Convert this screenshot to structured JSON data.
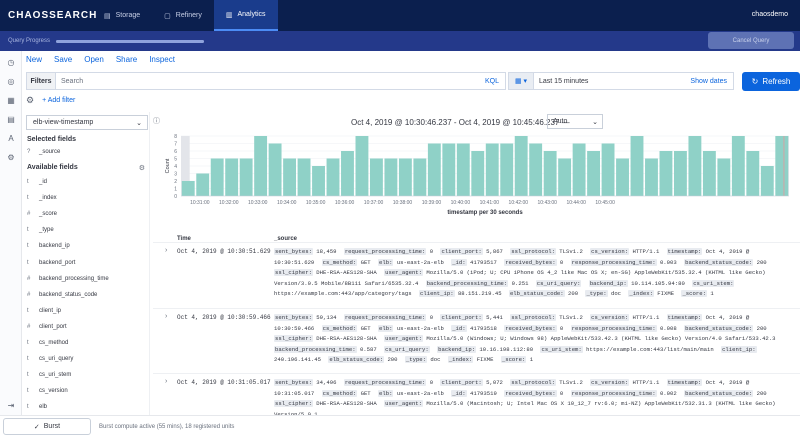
{
  "topbar": {
    "logo": "CHAOSSEARCH",
    "tabs": [
      {
        "label": "Storage",
        "icon": "storage-icon"
      },
      {
        "label": "Refinery",
        "icon": "refinery-icon"
      },
      {
        "label": "Analytics",
        "icon": "analytics-icon",
        "active": true
      }
    ],
    "user": "chaosdemo"
  },
  "progress": {
    "label": "Query Progress",
    "fraction": 1.0,
    "cancel_label": "Cancel Query"
  },
  "menu": [
    "New",
    "Save",
    "Open",
    "Share",
    "Inspect"
  ],
  "filterbar": {
    "filters_label": "Filters",
    "search_placeholder": "Search",
    "kql_label": "KQL",
    "time_range": "Last 15 minutes",
    "show_dates": "Show dates",
    "refresh_label": "Refresh"
  },
  "add_filter_label": "+ Add filter",
  "sidebar": {
    "index_pattern": "elb-view-timestamp",
    "selected_title": "Selected fields",
    "selected_fields": [
      {
        "type": "?",
        "name": "_source"
      }
    ],
    "available_title": "Available fields",
    "available_fields": [
      {
        "type": "t",
        "name": "_id"
      },
      {
        "type": "t",
        "name": "_index"
      },
      {
        "type": "#",
        "name": "_score"
      },
      {
        "type": "t",
        "name": "_type"
      },
      {
        "type": "t",
        "name": "backend_ip"
      },
      {
        "type": "t",
        "name": "backend_port"
      },
      {
        "type": "#",
        "name": "backend_processing_time"
      },
      {
        "type": "#",
        "name": "backend_status_code"
      },
      {
        "type": "t",
        "name": "client_ip"
      },
      {
        "type": "#",
        "name": "client_port"
      },
      {
        "type": "t",
        "name": "cs_method"
      },
      {
        "type": "t",
        "name": "cs_uri_query"
      },
      {
        "type": "t",
        "name": "cs_uri_stem"
      },
      {
        "type": "t",
        "name": "cs_version"
      },
      {
        "type": "t",
        "name": "elb"
      }
    ]
  },
  "main": {
    "time_range_text": "Oct 4, 2019 @ 10:30:46.237 - Oct 4, 2019 @ 10:45:46.237 —",
    "interval": "Auto",
    "col_time": "Time",
    "col_source": "_source"
  },
  "chart_data": {
    "type": "bar",
    "ylabel": "Count",
    "xlabel": "timestamp per 30 seconds",
    "ylim": [
      0,
      8
    ],
    "yticks": [
      "0",
      "1",
      "2",
      "3",
      "4",
      "5",
      "6",
      "7",
      "8"
    ],
    "xtick_labels": [
      "10:31:00",
      "10:32:00",
      "10:33:00",
      "10:34:00",
      "10:35:00",
      "10:36:00",
      "10:37:00",
      "10:38:00",
      "10:39:00",
      "10:40:00",
      "10:41:00",
      "10:42:00",
      "10:43:00",
      "10:44:00",
      "10:45:00"
    ],
    "values": [
      2,
      3,
      5,
      5,
      5,
      8,
      7,
      5,
      5,
      4,
      5,
      6,
      8,
      5,
      5,
      5,
      5,
      7,
      7,
      7,
      6,
      7,
      7,
      8,
      7,
      6,
      5,
      7,
      6,
      7,
      5,
      8,
      5,
      6,
      6,
      8,
      6,
      5,
      8,
      6,
      4,
      8
    ],
    "bar_color": "#8fd1c7",
    "partial_color": "#e3e5ea",
    "edge_color": "#d4a3a3",
    "grid": true
  },
  "docs": [
    {
      "time": "Oct 4, 2019 @ 10:30:51.629",
      "fields": [
        [
          "sent_bytes",
          "18,459"
        ],
        [
          "request_processing_time",
          "0"
        ],
        [
          "client_port",
          "5,867"
        ],
        [
          "ssl_protocol",
          "TLSv1.2"
        ],
        [
          "cs_version",
          "HTTP/1.1"
        ],
        [
          "timestamp",
          "Oct 4, 2019 @ 10:30:51.629"
        ],
        [
          "cs_method",
          "GET"
        ],
        [
          "elb",
          "us-east-2a-elb"
        ],
        [
          "_id",
          "41793517"
        ],
        [
          "received_bytes",
          "0"
        ],
        [
          "response_processing_time",
          "0.003"
        ],
        [
          "backend_status_code",
          "200"
        ],
        [
          "ssl_cipher",
          "DHE-RSA-AES128-SHA"
        ],
        [
          "user_agent",
          "Mozilla/5.0 (iPod; U; CPU iPhone OS 4_2 like Mac OS X; en-SG) AppleWebKit/535.32.4 (KHTML like Gecko) Version/3.0.5 Mobile/8B111 Safari/6535.32.4"
        ],
        [
          "backend_processing_time",
          "0.251"
        ],
        [
          "cs_uri_query",
          ""
        ],
        [
          "backend_ip",
          "10.114.105.94:80"
        ],
        [
          "cs_uri_stem",
          "https://example.com:443/app/category/tags"
        ],
        [
          "client_ip",
          "88.151.219.45"
        ],
        [
          "elb_status_code",
          "200"
        ],
        [
          "_type",
          "doc"
        ],
        [
          "_index",
          "FIXME"
        ],
        [
          "_score",
          "1"
        ]
      ]
    },
    {
      "time": "Oct 4, 2019 @ 10:30:59.466",
      "fields": [
        [
          "sent_bytes",
          "59,134"
        ],
        [
          "request_processing_time",
          "0"
        ],
        [
          "client_port",
          "5,441"
        ],
        [
          "ssl_protocol",
          "TLSv1.2"
        ],
        [
          "cs_version",
          "HTTP/1.1"
        ],
        [
          "timestamp",
          "Oct 4, 2019 @ 10:30:59.466"
        ],
        [
          "cs_method",
          "GET"
        ],
        [
          "elb",
          "us-east-2a-elb"
        ],
        [
          "_id",
          "41793518"
        ],
        [
          "received_bytes",
          "0"
        ],
        [
          "response_processing_time",
          "0.008"
        ],
        [
          "backend_status_code",
          "200"
        ],
        [
          "ssl_cipher",
          "DHE-RSA-AES128-SHA"
        ],
        [
          "user_agent",
          "Mozilla/5.0 (Windows; U; Windows 98) AppleWebKit/533.42.3 (KHTML like Gecko) Version/4.0 Safari/533.42.3"
        ],
        [
          "backend_processing_time",
          "0.587"
        ],
        [
          "cs_uri_query",
          ""
        ],
        [
          "backend_ip",
          "10.16.198.112:80"
        ],
        [
          "cs_uri_stem",
          "https://example.com:443/list/main/main"
        ],
        [
          "client_ip",
          "240.196.141.45"
        ],
        [
          "elb_status_code",
          "200"
        ],
        [
          "_type",
          "doc"
        ],
        [
          "_index",
          "FIXME"
        ],
        [
          "_score",
          "1"
        ]
      ]
    },
    {
      "time": "Oct 4, 2019 @ 10:31:05.017",
      "fields": [
        [
          "sent_bytes",
          "34,496"
        ],
        [
          "request_processing_time",
          "0"
        ],
        [
          "client_port",
          "5,072"
        ],
        [
          "ssl_protocol",
          "TLSv1.2"
        ],
        [
          "cs_version",
          "HTTP/1.1"
        ],
        [
          "timestamp",
          "Oct 4, 2019 @ 10:31:05.017"
        ],
        [
          "cs_method",
          "GET"
        ],
        [
          "elb",
          "us-east-2a-elb"
        ],
        [
          "_id",
          "41793519"
        ],
        [
          "received_bytes",
          "0"
        ],
        [
          "response_processing_time",
          "0.002"
        ],
        [
          "backend_status_code",
          "200"
        ],
        [
          "ssl_cipher",
          "DHE-RSA-AES128-SHA"
        ],
        [
          "user_agent",
          "Mozilla/5.0 (Macintosh; U; Intel Mac OS X 10_12_7 rv:6.0; mi-NZ) AppleWebKit/532.31.3 (KHTML like Gecko) Version/5.0.1"
        ]
      ]
    }
  ],
  "burst": {
    "button_label": "Burst",
    "status": "Burst compute active (55 mins), 18 registered units"
  }
}
